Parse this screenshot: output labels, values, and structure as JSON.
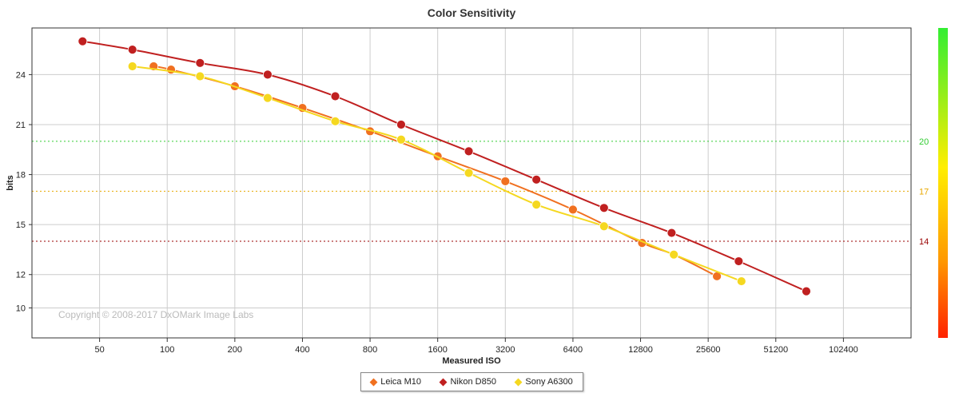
{
  "chart_data": {
    "type": "line",
    "title": "Color Sensitivity",
    "xlabel": "Measured ISO",
    "ylabel": "bits",
    "x_scale": "log2",
    "x_ticks": [
      "50",
      "100",
      "200",
      "400",
      "800",
      "1600",
      "3200",
      "6400",
      "12800",
      "25600",
      "51200",
      "102400"
    ],
    "y_ticks": [
      "10",
      "12",
      "15",
      "18",
      "21",
      "24"
    ],
    "xlim": [
      25,
      204800
    ],
    "ylim": [
      8.2,
      26.8
    ],
    "grid": true,
    "legend_position": "bottom-center",
    "reference_lines": [
      {
        "value": 20,
        "label": "20",
        "color": "#33cc33"
      },
      {
        "value": 17,
        "label": "17",
        "color": "#e8a800"
      },
      {
        "value": 14,
        "label": "14",
        "color": "#990000"
      }
    ],
    "color_scale": [
      "#33ee33",
      "#ffee00",
      "#ff9900",
      "#ff2200"
    ],
    "copyright": "Copyright © 2008-2017 DxOMark Image Labs",
    "series": [
      {
        "name": "Leica M10",
        "color": "#f07020",
        "x": [
          87,
          104,
          200,
          400,
          800,
          1600,
          3200,
          6400,
          13000,
          18000,
          28000
        ],
        "y": [
          24.5,
          24.3,
          23.3,
          22.0,
          20.6,
          19.1,
          17.6,
          15.9,
          13.9,
          13.2,
          11.9
        ]
      },
      {
        "name": "Nikon D850",
        "color": "#c02020",
        "x": [
          42,
          70,
          140,
          280,
          560,
          1100,
          2200,
          4400,
          8800,
          17600,
          35000,
          70000
        ],
        "y": [
          26.0,
          25.5,
          24.7,
          24.0,
          22.7,
          21.0,
          19.4,
          17.7,
          16.0,
          14.5,
          12.8,
          11.0
        ]
      },
      {
        "name": "Sony A6300",
        "color": "#f5d820",
        "x": [
          70,
          140,
          280,
          560,
          1100,
          2200,
          4400,
          8800,
          18000,
          36000
        ],
        "y": [
          24.5,
          23.9,
          22.6,
          21.2,
          20.1,
          18.1,
          16.2,
          14.9,
          13.2,
          11.6
        ]
      }
    ]
  }
}
